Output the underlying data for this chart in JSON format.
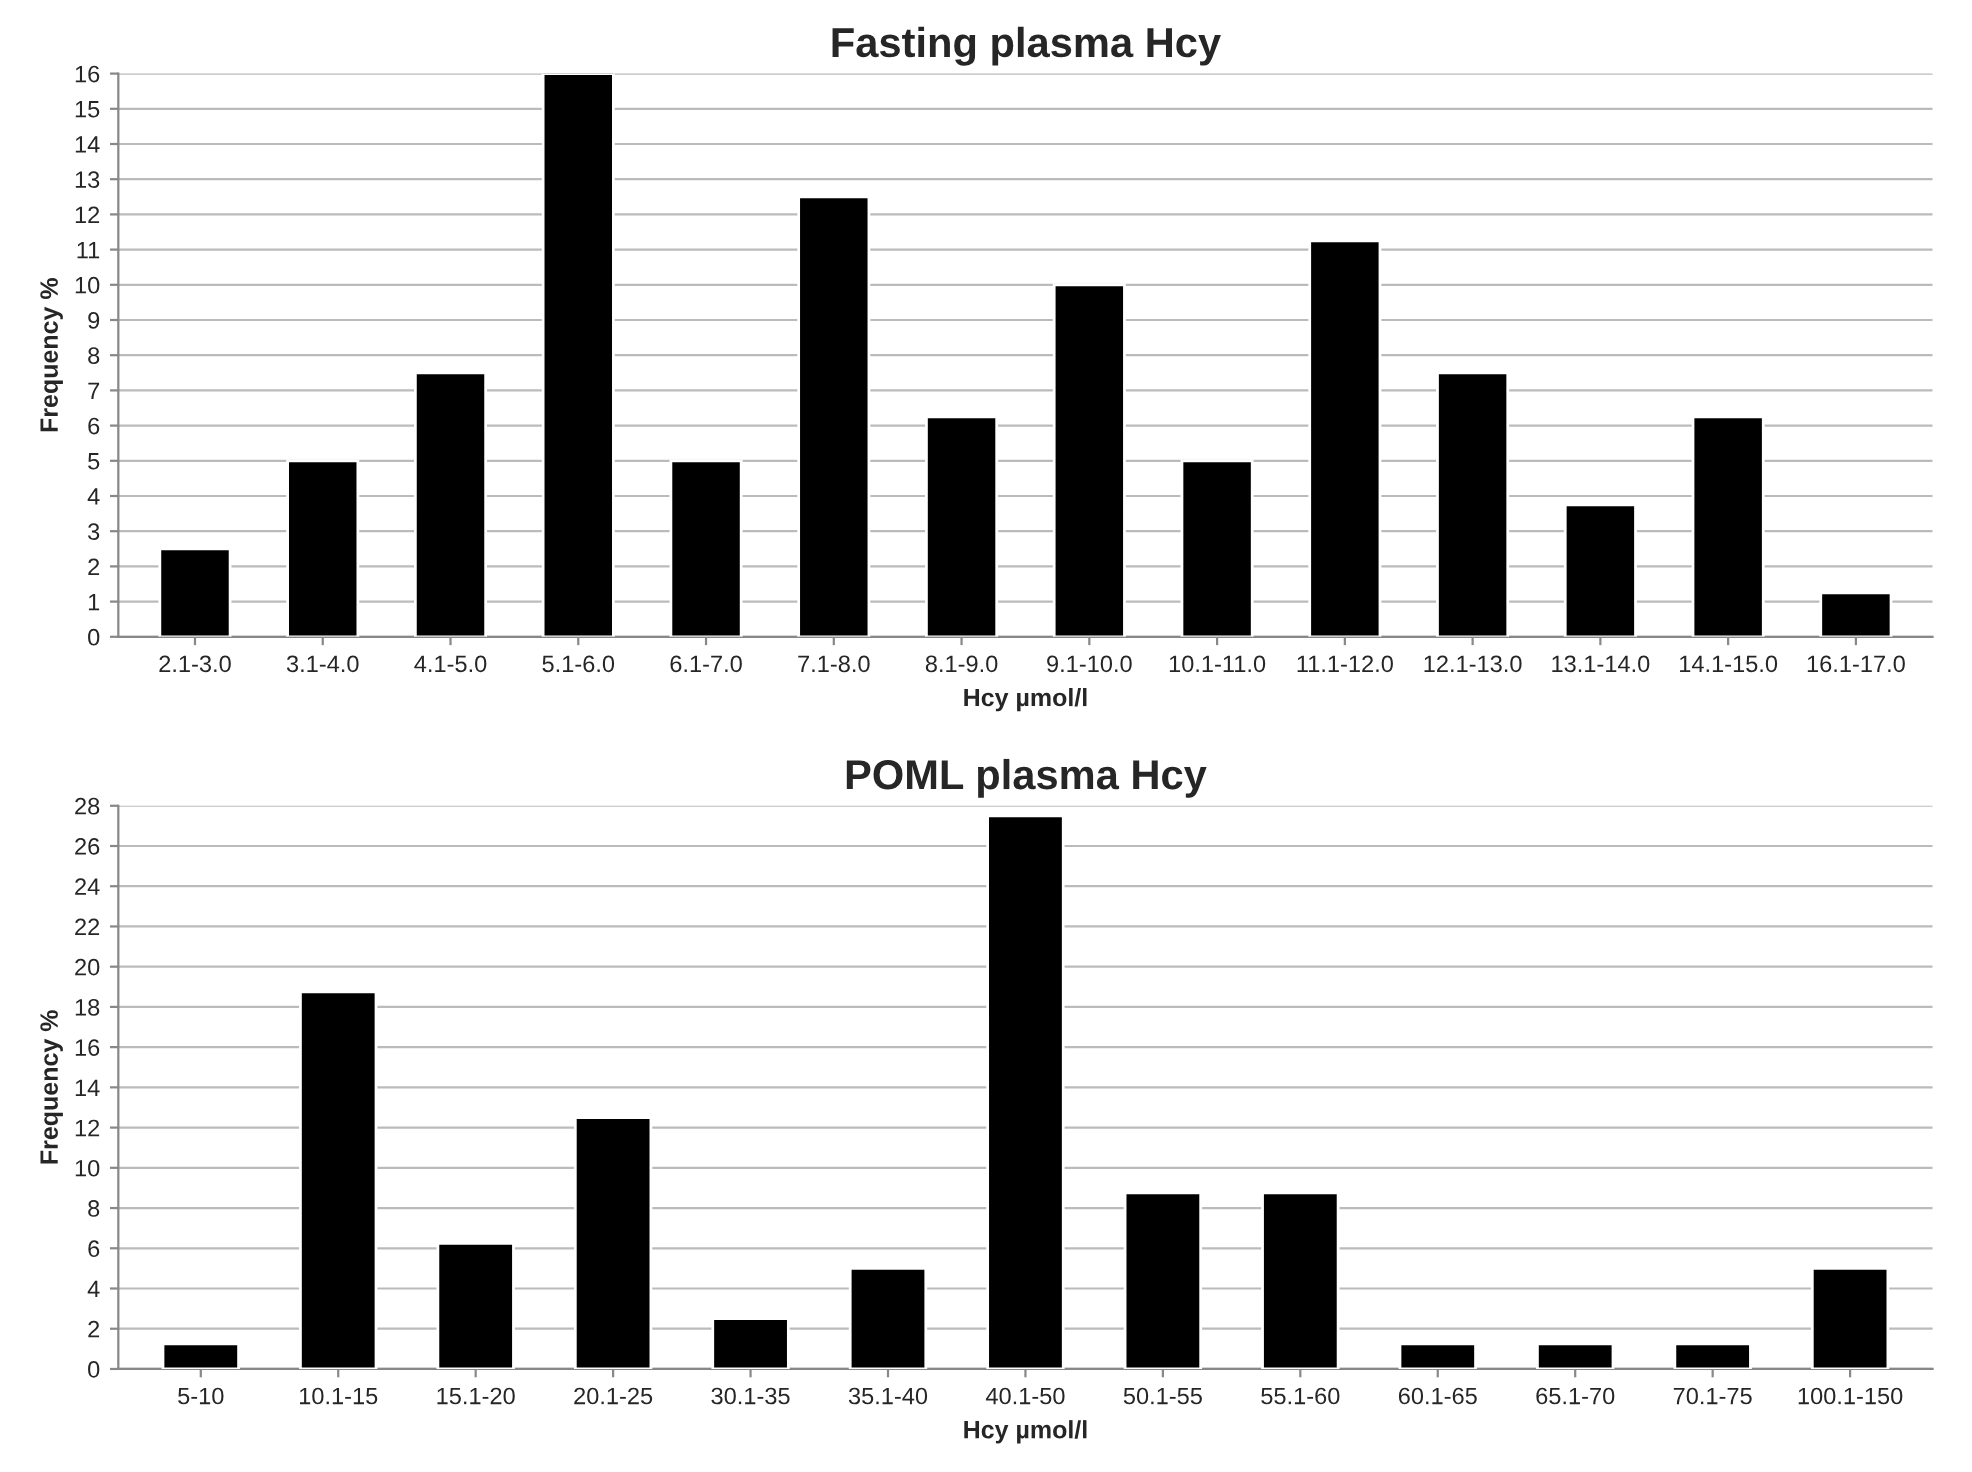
{
  "chart_data": [
    {
      "type": "bar",
      "title": "Fasting plasma Hcy",
      "xlabel": "Hcy µmol/l",
      "ylabel": "Frequency %",
      "categories": [
        "2.1-3.0",
        "3.1-4.0",
        "4.1-5.0",
        "5.1-6.0",
        "6.1-7.0",
        "7.1-8.0",
        "8.1-9.0",
        "9.1-10.0",
        "10.1-11.0",
        "11.1-12.0",
        "12.1-13.0",
        "13.1-14.0",
        "14.1-15.0",
        "16.1-17.0"
      ],
      "values": [
        2.5,
        5,
        7.5,
        16,
        5,
        12.5,
        6.25,
        10,
        5,
        11.25,
        7.5,
        3.75,
        6.25,
        1.25
      ],
      "color": "#000000",
      "ylim": [
        0,
        16
      ],
      "yticks": [
        0,
        1,
        2,
        3,
        4,
        5,
        6,
        7,
        8,
        9,
        10,
        11,
        12,
        13,
        14,
        15,
        16
      ],
      "grid": "y"
    },
    {
      "type": "bar",
      "title": "POML plasma Hcy",
      "xlabel": "Hcy µmol/l",
      "ylabel": "Frequency %",
      "categories": [
        "5-10",
        "10.1-15",
        "15.1-20",
        "20.1-25",
        "30.1-35",
        "35.1-40",
        "40.1-50",
        "50.1-55",
        "55.1-60",
        "60.1-65",
        "65.1-70",
        "70.1-75",
        "100.1-150"
      ],
      "values": [
        1.25,
        18.75,
        6.25,
        12.5,
        2.5,
        5,
        27.5,
        8.75,
        8.75,
        1.25,
        1.25,
        1.25,
        5
      ],
      "color": "#000000",
      "ylim": [
        0,
        28
      ],
      "yticks": [
        0,
        2,
        4,
        6,
        8,
        10,
        12,
        14,
        16,
        18,
        20,
        22,
        24,
        26,
        28
      ],
      "grid": "y"
    }
  ]
}
